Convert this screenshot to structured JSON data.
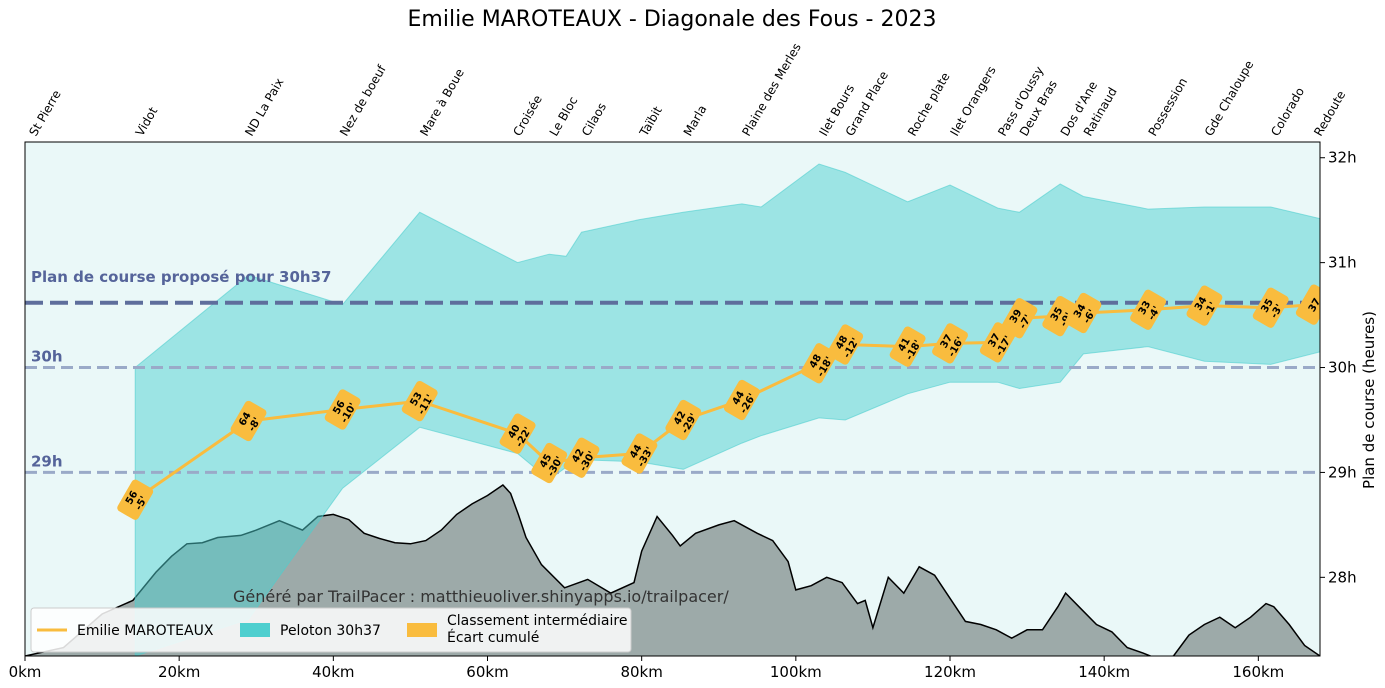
{
  "chart_data": {
    "type": "line",
    "title": "Emilie MAROTEAUX - Diagonale des Fous - 2023",
    "ylabel": "Plan de course (heures)",
    "xlim": [
      0,
      168
    ],
    "ylim": [
      27.25,
      32.15
    ],
    "x_ticks": [
      {
        "value": 0,
        "label": "0km"
      },
      {
        "value": 20,
        "label": "20km"
      },
      {
        "value": 40,
        "label": "40km"
      },
      {
        "value": 60,
        "label": "60km"
      },
      {
        "value": 80,
        "label": "80km"
      },
      {
        "value": 100,
        "label": "100km"
      },
      {
        "value": 120,
        "label": "120km"
      },
      {
        "value": 140,
        "label": "140km"
      },
      {
        "value": 160,
        "label": "160km"
      }
    ],
    "y_ticks": [
      {
        "value": 28,
        "label": "28h"
      },
      {
        "value": 29,
        "label": "29h"
      },
      {
        "value": 30,
        "label": "30h"
      },
      {
        "value": 31,
        "label": "31h"
      },
      {
        "value": 32,
        "label": "32h"
      }
    ],
    "checkpoints": [
      {
        "name": "St Pierre",
        "km": 0.5
      },
      {
        "name": "Vidot",
        "km": 14.3
      },
      {
        "name": "ND La Paix",
        "km": 28.5
      },
      {
        "name": "Nez de boeuf",
        "km": 40.8
      },
      {
        "name": "Mare à Boue",
        "km": 51.2
      },
      {
        "name": "Croisée",
        "km": 63.3
      },
      {
        "name": "Le Bloc",
        "km": 68.0
      },
      {
        "name": "Cilaos",
        "km": 72.2
      },
      {
        "name": "Taïbit",
        "km": 79.7
      },
      {
        "name": "Marla",
        "km": 85.4
      },
      {
        "name": "Plaine des Merles",
        "km": 93.0
      },
      {
        "name": "Ilet Bours",
        "km": 103.0
      },
      {
        "name": "Grand Place",
        "km": 106.4
      },
      {
        "name": "Roche plate",
        "km": 114.5
      },
      {
        "name": "Ilet Orangers",
        "km": 120.0
      },
      {
        "name": "Pass d'Oussy",
        "km": 126.2
      },
      {
        "name": "Deux Bras",
        "km": 129.0
      },
      {
        "name": "Dos d'Ane",
        "km": 134.3
      },
      {
        "name": "Ratinaud",
        "km": 137.3
      },
      {
        "name": "Possession",
        "km": 145.7
      },
      {
        "name": "Gde Chaloupe",
        "km": 153.0
      },
      {
        "name": "Colorado",
        "km": 161.6
      },
      {
        "name": "Redoute",
        "km": 167.2
      }
    ],
    "series": [
      {
        "name": "Emilie MAROTEAUX",
        "color": "#f9bc3e",
        "x": [
          14.3,
          29.0,
          41.2,
          51.2,
          63.9,
          68.0,
          72.2,
          79.7,
          85.4,
          93.0,
          103.0,
          106.4,
          114.5,
          120.0,
          126.2,
          129.0,
          134.3,
          137.3,
          145.7,
          153.0,
          161.6,
          167.2
        ],
        "y": [
          28.74,
          29.49,
          29.6,
          29.68,
          29.37,
          29.09,
          29.14,
          29.18,
          29.5,
          29.69,
          30.04,
          30.22,
          30.2,
          30.23,
          30.24,
          30.47,
          30.49,
          30.52,
          30.55,
          30.59,
          30.57,
          30.6
        ],
        "labels": [
          {
            "rank": "56",
            "gap": "-5'"
          },
          {
            "rank": "64",
            "gap": "-8'"
          },
          {
            "rank": "56",
            "gap": "-10'"
          },
          {
            "rank": "53",
            "gap": "-11'"
          },
          {
            "rank": "40",
            "gap": "-22'"
          },
          {
            "rank": "45",
            "gap": "-30'"
          },
          {
            "rank": "42",
            "gap": "-30'"
          },
          {
            "rank": "44",
            "gap": "-33'"
          },
          {
            "rank": "42",
            "gap": "-29'"
          },
          {
            "rank": "44",
            "gap": "-26'"
          },
          {
            "rank": "48",
            "gap": "-18'"
          },
          {
            "rank": "48",
            "gap": "-12'"
          },
          {
            "rank": "41",
            "gap": "-18'"
          },
          {
            "rank": "37",
            "gap": "-16'"
          },
          {
            "rank": "37",
            "gap": "-17'"
          },
          {
            "rank": "39",
            "gap": "-7'"
          },
          {
            "rank": "35",
            "gap": "-9'"
          },
          {
            "rank": "34",
            "gap": "-6'"
          },
          {
            "rank": "33",
            "gap": "-4'"
          },
          {
            "rank": "34",
            "gap": "-1'"
          },
          {
            "rank": "35",
            "gap": "-3'"
          },
          {
            "rank": "37",
            "gap": ""
          }
        ]
      },
      {
        "name": "Peloton 30h37",
        "type": "band",
        "color": "#4ecfcf",
        "x": [
          14.3,
          29.0,
          41.2,
          51.2,
          63.9,
          68.0,
          70.2,
          72.2,
          79.7,
          85.4,
          93.0,
          95.5,
          103.0,
          106.4,
          114.5,
          120.0,
          126.2,
          129.0,
          134.3,
          137.3,
          145.7,
          153.0,
          161.6,
          168.0
        ],
        "upper": [
          30.0,
          30.88,
          30.6,
          31.48,
          31.0,
          31.08,
          31.06,
          31.29,
          31.41,
          31.48,
          31.56,
          31.53,
          31.94,
          31.86,
          31.58,
          31.74,
          31.52,
          31.48,
          31.75,
          31.63,
          31.51,
          31.53,
          31.53,
          31.42
        ],
        "lower": [
          27.25,
          27.6,
          28.85,
          29.43,
          29.18,
          28.93,
          29.05,
          29.12,
          29.1,
          29.03,
          29.28,
          29.35,
          29.52,
          29.5,
          29.75,
          29.86,
          29.86,
          29.8,
          29.86,
          30.13,
          30.2,
          30.06,
          30.03,
          30.15
        ]
      }
    ],
    "reference_lines": [
      {
        "y": 30.617,
        "label": "Plan de course proposé pour 30h37",
        "color": "#5e6e9c",
        "style": "dashed-bold"
      },
      {
        "y": 30.0,
        "label": "30h",
        "color": "#9aaac8",
        "style": "dashed"
      },
      {
        "y": 29.0,
        "label": "29h",
        "color": "#9aaac8",
        "style": "dashed"
      }
    ],
    "elevation_profile": {
      "color": "#9daaa9",
      "x": [
        0,
        5,
        10,
        14,
        17,
        19,
        21,
        23,
        25,
        28,
        30,
        33,
        36,
        38,
        40,
        42,
        44,
        46,
        48,
        50,
        52,
        54,
        56,
        58,
        60,
        62,
        63,
        64,
        65,
        67,
        70,
        73,
        76,
        79,
        80,
        82,
        84,
        85,
        87,
        90,
        92,
        95,
        97,
        99,
        100,
        102,
        104,
        106,
        108,
        109,
        110,
        112,
        114,
        116,
        118,
        120,
        122,
        124,
        126,
        128,
        130,
        132,
        134,
        135,
        137,
        139,
        141,
        143,
        145,
        147,
        149,
        151,
        153,
        155,
        157,
        159,
        161,
        162,
        164,
        166,
        168
      ],
      "y": [
        27.25,
        27.33,
        27.65,
        27.78,
        28.05,
        28.2,
        28.32,
        28.33,
        28.38,
        28.4,
        28.45,
        28.54,
        28.45,
        28.58,
        28.6,
        28.55,
        28.42,
        28.37,
        28.33,
        28.32,
        28.35,
        28.45,
        28.6,
        28.7,
        28.78,
        28.88,
        28.8,
        28.6,
        28.38,
        28.12,
        27.9,
        27.98,
        27.85,
        27.95,
        28.25,
        28.58,
        28.4,
        28.3,
        28.42,
        28.5,
        28.54,
        28.42,
        28.35,
        28.15,
        27.88,
        27.92,
        28.0,
        27.95,
        27.75,
        27.78,
        27.52,
        28.0,
        27.85,
        28.1,
        28.02,
        27.8,
        27.58,
        27.55,
        27.5,
        27.42,
        27.5,
        27.5,
        27.72,
        27.85,
        27.7,
        27.55,
        27.48,
        27.33,
        27.28,
        27.22,
        27.25,
        27.45,
        27.55,
        27.62,
        27.52,
        27.62,
        27.75,
        27.72,
        27.55,
        27.35,
        27.25
      ]
    },
    "legend": {
      "placement": "lower-left",
      "entries": [
        "Emilie MAROTEAUX",
        "Peloton 30h37",
        "Classement intermédiaire",
        "Écart cumulé"
      ]
    },
    "watermark": "Généré par TrailPacer : matthieuoliver.shinyapps.io/trailpacer/",
    "grid": false
  }
}
